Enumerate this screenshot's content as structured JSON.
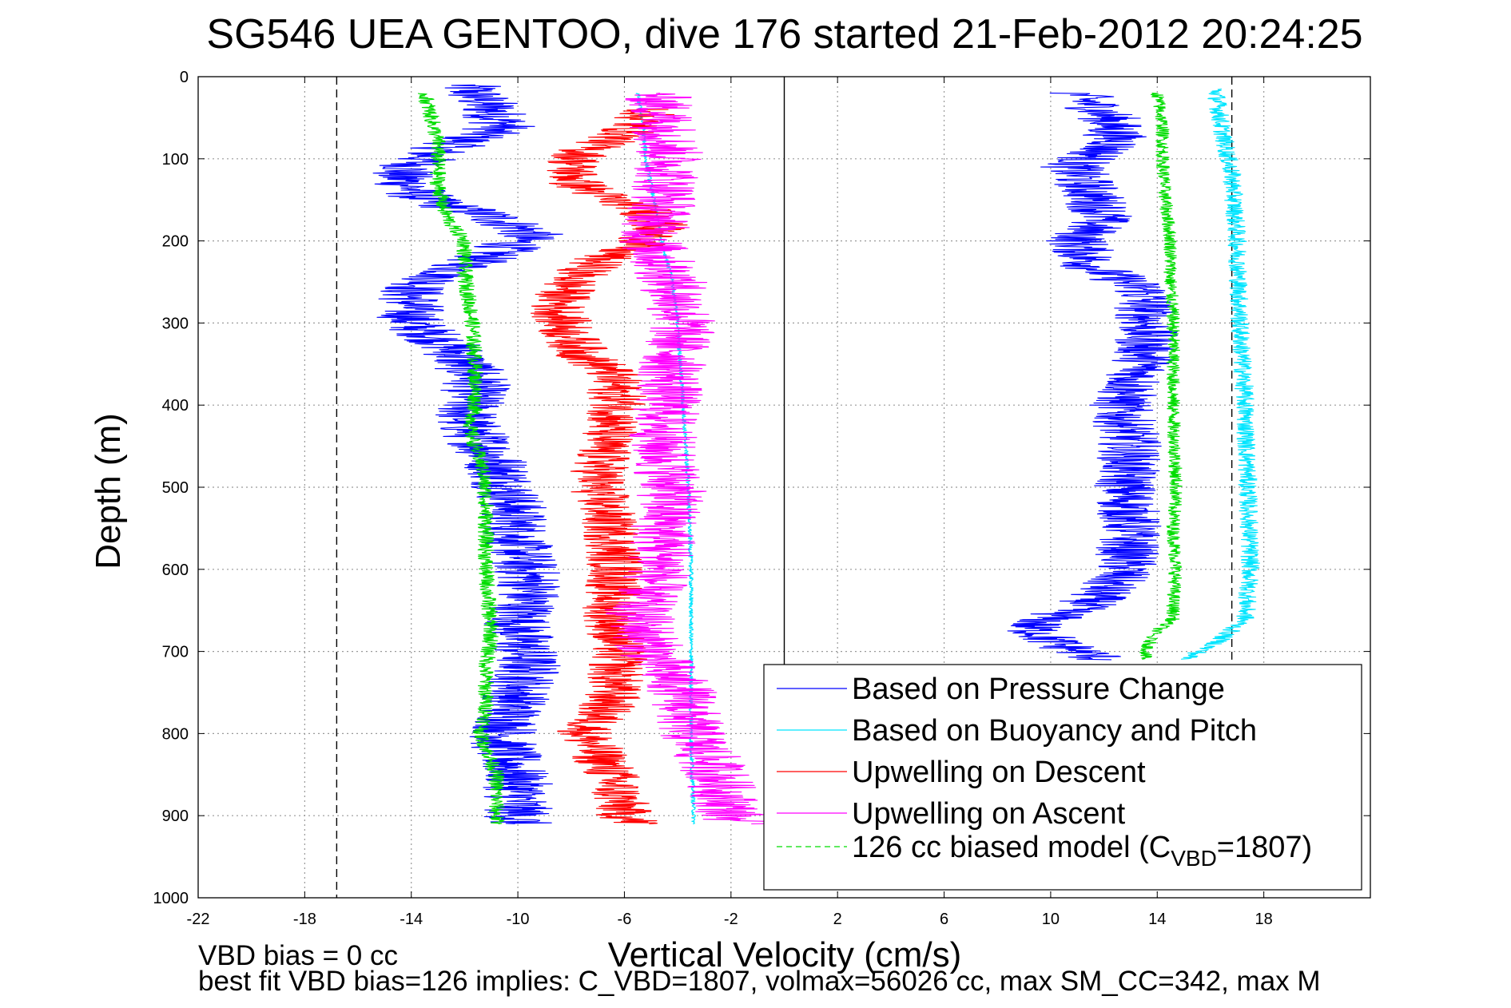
{
  "chart_data": {
    "type": "line",
    "title": "SG546 UEA GENTOO, dive 176 started 21-Feb-2012 20:24:25",
    "xlabel": "Vertical Velocity (cm/s)",
    "ylabel": "Depth (m)",
    "xlim": [
      -22,
      22
    ],
    "ylim": [
      0,
      1000
    ],
    "y_reversed": true,
    "grid": true,
    "legend_position": "bottom-right",
    "xticks": [
      "-22",
      "-18",
      "-14",
      "-10",
      "-6",
      "-2",
      "2",
      "6",
      "10",
      "14",
      "18"
    ],
    "yticks": [
      "0",
      "100",
      "200",
      "300",
      "400",
      "500",
      "600",
      "700",
      "800",
      "900",
      "1000"
    ],
    "reference_lines": [
      {
        "x": -16.8,
        "style": "dashed",
        "y_range": [
          0,
          1000
        ]
      },
      {
        "x": 0,
        "style": "solid",
        "y_range": [
          0,
          920
        ]
      },
      {
        "x": 16.8,
        "style": "dashed",
        "y_range": [
          0,
          710
        ]
      }
    ],
    "series": [
      {
        "name": "Based on Pressure Change",
        "color": "#0000ff",
        "segments": [
          {
            "points": [
              [
                -12,
                10
              ],
              [
                -11,
                40
              ],
              [
                -10.5,
                60
              ],
              [
                -13,
                90
              ],
              [
                -14.5,
                120
              ],
              [
                -13.5,
                150
              ],
              [
                -11,
                170
              ],
              [
                -9.5,
                190
              ],
              [
                -10.5,
                210
              ],
              [
                -12,
                230
              ],
              [
                -14,
                260
              ],
              [
                -14,
                300
              ],
              [
                -12.5,
                330
              ],
              [
                -11.5,
                370
              ],
              [
                -12,
                420
              ],
              [
                -10.8,
                470
              ],
              [
                -10.2,
                520
              ],
              [
                -10,
                570
              ],
              [
                -9.5,
                620
              ],
              [
                -10,
                670
              ],
              [
                -9.6,
                720
              ],
              [
                -10.2,
                770
              ],
              [
                -10.6,
                810
              ],
              [
                -10,
                860
              ],
              [
                -10,
                910
              ]
            ],
            "noise": 1.3
          },
          {
            "points": [
              [
                11,
                20
              ],
              [
                12.2,
                50
              ],
              [
                12.5,
                80
              ],
              [
                10.8,
                110
              ],
              [
                11.5,
                140
              ],
              [
                12,
                170
              ],
              [
                11,
                200
              ],
              [
                11.5,
                230
              ],
              [
                13.5,
                260
              ],
              [
                13.6,
                300
              ],
              [
                13.5,
                350
              ],
              [
                12.6,
                400
              ],
              [
                13,
                450
              ],
              [
                12.8,
                500
              ],
              [
                13,
                550
              ],
              [
                12.8,
                600
              ],
              [
                11.5,
                640
              ],
              [
                9.2,
                670
              ],
              [
                10.2,
                690
              ],
              [
                12,
                710
              ]
            ],
            "noise": 1.2
          }
        ]
      },
      {
        "name": "Based on Buoyancy and Pitch",
        "color": "#00e5ff",
        "segments": [
          {
            "points": [
              [
                -5.5,
                20
              ],
              [
                -5.3,
                60
              ],
              [
                -5.2,
                100
              ],
              [
                -4.9,
                150
              ],
              [
                -4.6,
                200
              ],
              [
                -4.2,
                250
              ],
              [
                -4,
                300
              ],
              [
                -3.8,
                400
              ],
              [
                -3.6,
                500
              ],
              [
                -3.5,
                600
              ],
              [
                -3.5,
                700
              ],
              [
                -3.5,
                800
              ],
              [
                -3.4,
                900
              ],
              [
                -3.4,
                910
              ]
            ],
            "noise": 0.08
          },
          {
            "points": [
              [
                16.2,
                15
              ],
              [
                16.4,
                60
              ],
              [
                16.8,
                120
              ],
              [
                17,
                200
              ],
              [
                17.1,
                300
              ],
              [
                17.3,
                400
              ],
              [
                17.4,
                500
              ],
              [
                17.5,
                600
              ],
              [
                17.3,
                660
              ],
              [
                16.2,
                690
              ],
              [
                15,
                710
              ]
            ],
            "noise": 0.35
          }
        ]
      },
      {
        "name": "Upwelling on Descent",
        "color": "#ff0000",
        "segments": [
          {
            "points": [
              [
                -5,
                40
              ],
              [
                -6,
                70
              ],
              [
                -7.5,
                90
              ],
              [
                -8,
                110
              ],
              [
                -7.8,
                130
              ],
              [
                -6.5,
                150
              ],
              [
                -5.3,
                160
              ],
              [
                -4.7,
                180
              ],
              [
                -5.2,
                200
              ],
              [
                -6.8,
                220
              ],
              [
                -8,
                250
              ],
              [
                -8.5,
                280
              ],
              [
                -8.2,
                310
              ],
              [
                -7.5,
                340
              ],
              [
                -6.5,
                360
              ],
              [
                -6.2,
                400
              ],
              [
                -6.8,
                450
              ],
              [
                -7,
                500
              ],
              [
                -6.5,
                550
              ],
              [
                -6.3,
                600
              ],
              [
                -6.5,
                650
              ],
              [
                -6.2,
                700
              ],
              [
                -6.5,
                760
              ],
              [
                -7.5,
                800
              ],
              [
                -6.5,
                850
              ],
              [
                -6,
                900
              ],
              [
                -5.5,
                910
              ]
            ],
            "noise": 1.1
          }
        ]
      },
      {
        "name": "Upwelling on Ascent",
        "color": "#ff00ff",
        "segments": [
          {
            "points": [
              [
                -4.8,
                20
              ],
              [
                -4.5,
                60
              ],
              [
                -4.3,
                100
              ],
              [
                -4.5,
                150
              ],
              [
                -5,
                200
              ],
              [
                -4.2,
                250
              ],
              [
                -3.8,
                300
              ],
              [
                -4.2,
                350
              ],
              [
                -4.4,
                400
              ],
              [
                -4.6,
                450
              ],
              [
                -4.2,
                500
              ],
              [
                -4.5,
                550
              ],
              [
                -4.6,
                600
              ],
              [
                -5.5,
                650
              ],
              [
                -5,
                700
              ],
              [
                -3.8,
                750
              ],
              [
                -3.5,
                800
              ],
              [
                -2.5,
                850
              ],
              [
                -2,
                900
              ],
              [
                -1.5,
                910
              ]
            ],
            "noise": 1.3
          }
        ]
      },
      {
        "name": "126 cc biased model (C_VBD=1807)",
        "color": "#00dd00",
        "dashed_in_legend": true,
        "segments": [
          {
            "points": [
              [
                -13.5,
                20
              ],
              [
                -13,
                80
              ],
              [
                -13,
                130
              ],
              [
                -12.8,
                160
              ],
              [
                -12.5,
                180
              ],
              [
                -12,
                200
              ],
              [
                -12,
                240
              ],
              [
                -11.7,
                300
              ],
              [
                -11.6,
                360
              ],
              [
                -11.6,
                400
              ],
              [
                -11.8,
                430
              ],
              [
                -11.3,
                480
              ],
              [
                -11.2,
                520
              ],
              [
                -11.2,
                600
              ],
              [
                -11,
                680
              ],
              [
                -11.2,
                720
              ],
              [
                -11.2,
                780
              ],
              [
                -11.4,
                800
              ],
              [
                -10.8,
                850
              ],
              [
                -10.8,
                910
              ]
            ],
            "noise": 0.3
          },
          {
            "points": [
              [
                14,
                20
              ],
              [
                14.2,
                60
              ],
              [
                14.2,
                100
              ],
              [
                14.3,
                150
              ],
              [
                14.5,
                200
              ],
              [
                14.5,
                250
              ],
              [
                14.6,
                300
              ],
              [
                14.6,
                400
              ],
              [
                14.7,
                500
              ],
              [
                14.6,
                550
              ],
              [
                14.7,
                600
              ],
              [
                14.6,
                640
              ],
              [
                14.6,
                660
              ],
              [
                13.8,
                680
              ],
              [
                13.5,
                710
              ]
            ],
            "noise": 0.25
          }
        ]
      }
    ],
    "legend": {
      "entries": [
        "Based on Pressure Change",
        "Based on Buoyancy and Pitch",
        "Upwelling on Descent",
        "Upwelling on Ascent",
        "126 cc biased model (C"
      ],
      "model_entry_subscript": "VBD",
      "model_entry_suffix": "=1807)"
    },
    "annotations": {
      "vbd_bias": "VBD bias = 0 cc",
      "best_fit": "best fit VBD bias=126 implies: C_VBD=1807, volmax=56026 cc, max SM_CC=342, max M"
    }
  }
}
